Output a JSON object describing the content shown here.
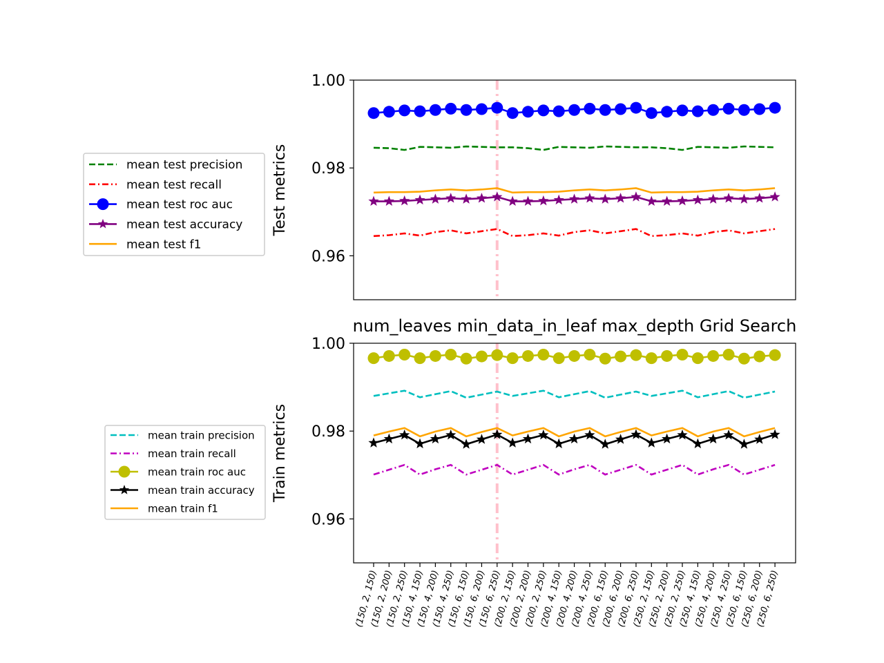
{
  "chart_data": [
    {
      "type": "line",
      "ylabel": "Test metrics",
      "ylim": [
        0.95,
        1.0
      ],
      "yticks": [
        0.96,
        0.98,
        1.0
      ],
      "ytick_labels": [
        "0.96",
        "0.98",
        "1.00"
      ],
      "legend_placement": "left-outside",
      "vline_category_index": 8,
      "vline_color": "#ffc0cb",
      "categories": [
        "(150, 2, 150)",
        "(150, 2, 200)",
        "(150, 2, 250)",
        "(150, 4, 150)",
        "(150, 4, 200)",
        "(150, 4, 250)",
        "(150, 6, 150)",
        "(150, 6, 200)",
        "(150, 6, 250)",
        "(200, 2, 150)",
        "(200, 2, 200)",
        "(200, 2, 250)",
        "(200, 4, 150)",
        "(200, 4, 200)",
        "(200, 4, 250)",
        "(200, 6, 150)",
        "(200, 6, 200)",
        "(200, 6, 250)",
        "(250, 2, 150)",
        "(250, 2, 200)",
        "(250, 2, 250)",
        "(250, 4, 150)",
        "(250, 4, 200)",
        "(250, 4, 250)",
        "(250, 6, 150)",
        "(250, 6, 200)",
        "(250, 6, 250)"
      ],
      "series": [
        {
          "name": "mean test precision",
          "color": "#008000",
          "style": "dashed",
          "marker": "none",
          "values": [
            0.9846,
            0.9845,
            0.9841,
            0.9848,
            0.9847,
            0.9846,
            0.9849,
            0.9848,
            0.9847,
            0.9847,
            0.9845,
            0.9841,
            0.9848,
            0.9847,
            0.9846,
            0.9849,
            0.9848,
            0.9847,
            0.9847,
            0.9845,
            0.9841,
            0.9848,
            0.9847,
            0.9846,
            0.9849,
            0.9848,
            0.9847
          ]
        },
        {
          "name": "mean test recall",
          "color": "#ff0000",
          "style": "dashdot",
          "marker": "none",
          "values": [
            0.9645,
            0.9647,
            0.9651,
            0.9646,
            0.9654,
            0.9658,
            0.9651,
            0.9656,
            0.9661,
            0.9645,
            0.9647,
            0.9651,
            0.9646,
            0.9654,
            0.9658,
            0.9651,
            0.9656,
            0.9661,
            0.9645,
            0.9647,
            0.9651,
            0.9646,
            0.9654,
            0.9658,
            0.9651,
            0.9656,
            0.9661
          ]
        },
        {
          "name": "mean test roc auc",
          "color": "#0000ff",
          "style": "solid",
          "marker": "circle",
          "values": [
            0.9925,
            0.9928,
            0.9931,
            0.9929,
            0.9932,
            0.9935,
            0.9932,
            0.9934,
            0.9937,
            0.9925,
            0.9928,
            0.9931,
            0.9929,
            0.9932,
            0.9935,
            0.9932,
            0.9934,
            0.9937,
            0.9925,
            0.9928,
            0.9931,
            0.9929,
            0.9932,
            0.9935,
            0.9932,
            0.9934,
            0.9937
          ]
        },
        {
          "name": "mean test accuracy",
          "color": "#800080",
          "style": "solid",
          "marker": "star",
          "values": [
            0.9724,
            0.9724,
            0.9725,
            0.9727,
            0.9729,
            0.9731,
            0.9729,
            0.9731,
            0.9734,
            0.9724,
            0.9724,
            0.9725,
            0.9727,
            0.9729,
            0.9731,
            0.9729,
            0.9731,
            0.9734,
            0.9724,
            0.9724,
            0.9725,
            0.9727,
            0.9729,
            0.9731,
            0.9729,
            0.9731,
            0.9734
          ]
        },
        {
          "name": "mean test f1",
          "color": "#ffa500",
          "style": "solid",
          "marker": "none",
          "values": [
            0.9744,
            0.9745,
            0.9745,
            0.9746,
            0.9749,
            0.9751,
            0.9749,
            0.9751,
            0.9754,
            0.9744,
            0.9745,
            0.9745,
            0.9746,
            0.9749,
            0.9751,
            0.9749,
            0.9751,
            0.9754,
            0.9744,
            0.9745,
            0.9745,
            0.9746,
            0.9749,
            0.9751,
            0.9749,
            0.9751,
            0.9754
          ]
        }
      ]
    },
    {
      "type": "line",
      "title": "num_leaves min_data_in_leaf max_depth Grid Search",
      "ylabel": "Train metrics",
      "ylim": [
        0.95,
        1.0
      ],
      "yticks": [
        0.96,
        0.98,
        1.0
      ],
      "ytick_labels": [
        "0.96",
        "0.98",
        "1.00"
      ],
      "legend_placement": "left-outside",
      "vline_category_index": 8,
      "vline_color": "#ffc0cb",
      "categories": [
        "(150, 2, 150)",
        "(150, 2, 200)",
        "(150, 2, 250)",
        "(150, 4, 150)",
        "(150, 4, 200)",
        "(150, 4, 250)",
        "(150, 6, 150)",
        "(150, 6, 200)",
        "(150, 6, 250)",
        "(200, 2, 150)",
        "(200, 2, 200)",
        "(200, 2, 250)",
        "(200, 4, 150)",
        "(200, 4, 200)",
        "(200, 4, 250)",
        "(200, 6, 150)",
        "(200, 6, 200)",
        "(200, 6, 250)",
        "(250, 2, 150)",
        "(250, 2, 200)",
        "(250, 2, 250)",
        "(250, 4, 150)",
        "(250, 4, 200)",
        "(250, 4, 250)",
        "(250, 6, 150)",
        "(250, 6, 200)",
        "(250, 6, 250)"
      ],
      "series": [
        {
          "name": "mean train precision",
          "color": "#00bfbf",
          "style": "dashed",
          "marker": "none",
          "values": [
            0.988,
            0.9886,
            0.9892,
            0.9877,
            0.9884,
            0.9891,
            0.9876,
            0.9883,
            0.989,
            0.988,
            0.9886,
            0.9892,
            0.9877,
            0.9884,
            0.9891,
            0.9876,
            0.9883,
            0.989,
            0.988,
            0.9886,
            0.9892,
            0.9877,
            0.9884,
            0.9891,
            0.9876,
            0.9883,
            0.989
          ]
        },
        {
          "name": "mean train recall",
          "color": "#bf00bf",
          "style": "dashdot",
          "marker": "none",
          "values": [
            0.9701,
            0.9712,
            0.9723,
            0.9701,
            0.9713,
            0.9723,
            0.9701,
            0.9712,
            0.9723,
            0.9701,
            0.9712,
            0.9723,
            0.9701,
            0.9713,
            0.9723,
            0.9701,
            0.9712,
            0.9723,
            0.9701,
            0.9712,
            0.9723,
            0.9701,
            0.9713,
            0.9723,
            0.9701,
            0.9712,
            0.9723
          ]
        },
        {
          "name": "mean train roc auc",
          "color": "#bfbf00",
          "style": "solid",
          "marker": "circle",
          "values": [
            0.9966,
            0.9971,
            0.9974,
            0.9966,
            0.9971,
            0.9974,
            0.9965,
            0.997,
            0.9973,
            0.9966,
            0.9971,
            0.9974,
            0.9966,
            0.9971,
            0.9974,
            0.9965,
            0.997,
            0.9973,
            0.9966,
            0.9971,
            0.9974,
            0.9966,
            0.9971,
            0.9974,
            0.9965,
            0.997,
            0.9973
          ]
        },
        {
          "name": "mean train accuracy",
          "color": "#000000",
          "style": "solid",
          "marker": "star",
          "values": [
            0.9773,
            0.9782,
            0.9791,
            0.9771,
            0.9782,
            0.9791,
            0.977,
            0.9781,
            0.9792,
            0.9773,
            0.9782,
            0.9791,
            0.9771,
            0.9782,
            0.9791,
            0.977,
            0.9781,
            0.9792,
            0.9773,
            0.9782,
            0.9791,
            0.9771,
            0.9782,
            0.9791,
            0.977,
            0.9781,
            0.9792
          ]
        },
        {
          "name": "mean train f1",
          "color": "#ffa500",
          "style": "solid",
          "marker": "none",
          "values": [
            0.979,
            0.9799,
            0.9807,
            0.9788,
            0.9799,
            0.9807,
            0.9788,
            0.9798,
            0.9807,
            0.979,
            0.9799,
            0.9807,
            0.9788,
            0.9799,
            0.9807,
            0.9788,
            0.9798,
            0.9807,
            0.979,
            0.9799,
            0.9807,
            0.9788,
            0.9799,
            0.9807,
            0.9788,
            0.9798,
            0.9807
          ]
        }
      ]
    }
  ]
}
